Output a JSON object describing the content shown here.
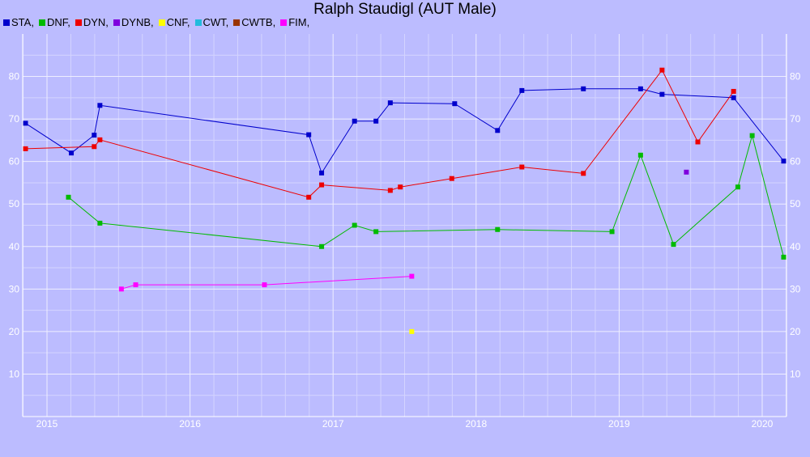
{
  "chart_data": {
    "type": "line",
    "title": "Ralph Staudigl (AUT Male)",
    "xlabel": "",
    "ylabel": "",
    "xlim": [
      2014.83,
      2020.17
    ],
    "ylim": [
      0,
      90
    ],
    "x_ticks": [
      2015,
      2016,
      2017,
      2018,
      2019,
      2020
    ],
    "y_ticks": [
      10,
      20,
      30,
      40,
      50,
      60,
      70,
      80
    ],
    "grid": true,
    "legend": "top-left",
    "legend_entries": [
      {
        "label": "STA,",
        "color": "#0000cc"
      },
      {
        "label": "DNF,",
        "color": "#00bb00"
      },
      {
        "label": "DYN,",
        "color": "#ee0000"
      },
      {
        "label": "DYNB,",
        "color": "#7f00dd"
      },
      {
        "label": "CNF,",
        "color": "#ffff00"
      },
      {
        "label": "CWT,",
        "color": "#22bbdd"
      },
      {
        "label": "CWTB,",
        "color": "#993300"
      },
      {
        "label": "FIM,",
        "color": "#ff00ff"
      }
    ],
    "series": [
      {
        "name": "STA",
        "color": "#0000cc",
        "points": [
          [
            2014.85,
            69
          ],
          [
            2015.17,
            62
          ],
          [
            2015.33,
            66.2
          ],
          [
            2015.37,
            73.2
          ],
          [
            2016.83,
            66.3
          ],
          [
            2016.92,
            57.3
          ],
          [
            2017.15,
            69.5
          ],
          [
            2017.3,
            69.5
          ],
          [
            2017.4,
            73.8
          ],
          [
            2017.85,
            73.6
          ],
          [
            2018.15,
            67.3
          ],
          [
            2018.32,
            76.7
          ],
          [
            2018.75,
            77.1
          ],
          [
            2019.15,
            77.1
          ],
          [
            2019.3,
            75.8
          ],
          [
            2019.8,
            75
          ],
          [
            2020.15,
            60.1
          ]
        ]
      },
      {
        "name": "DNF",
        "color": "#00bb00",
        "points": [
          [
            2015.15,
            51.6
          ],
          [
            2015.37,
            45.5
          ],
          [
            2016.92,
            40
          ],
          [
            2017.15,
            45
          ],
          [
            2017.3,
            43.5
          ],
          [
            2018.15,
            44
          ],
          [
            2018.95,
            43.5
          ],
          [
            2019.15,
            61.5
          ],
          [
            2019.38,
            40.5
          ],
          [
            2019.83,
            54
          ],
          [
            2019.93,
            66.1
          ],
          [
            2020.15,
            37.5
          ]
        ]
      },
      {
        "name": "DYN",
        "color": "#ee0000",
        "points": [
          [
            2014.85,
            63
          ],
          [
            2015.33,
            63.5
          ],
          [
            2015.37,
            65.1
          ],
          [
            2016.83,
            51.6
          ],
          [
            2016.92,
            54.5
          ],
          [
            2017.4,
            53.2
          ],
          [
            2017.47,
            54
          ],
          [
            2017.83,
            56
          ],
          [
            2018.32,
            58.7
          ],
          [
            2018.75,
            57.2
          ],
          [
            2019.3,
            81.5
          ],
          [
            2019.55,
            64.6
          ],
          [
            2019.8,
            76.5
          ]
        ]
      },
      {
        "name": "DYNB",
        "color": "#7f00dd",
        "points": [
          [
            2019.47,
            57.5
          ]
        ]
      },
      {
        "name": "CNF",
        "color": "#ffff00",
        "points": [
          [
            2017.55,
            20
          ]
        ]
      },
      {
        "name": "FIM",
        "color": "#ff00ff",
        "points": [
          [
            2015.52,
            30
          ],
          [
            2015.62,
            31
          ],
          [
            2016.52,
            31
          ],
          [
            2017.55,
            33
          ]
        ]
      }
    ]
  }
}
